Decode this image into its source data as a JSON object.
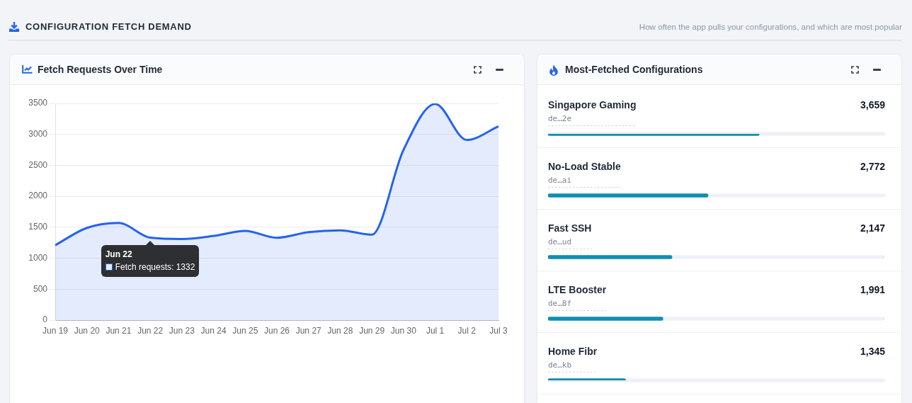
{
  "chart_data": [
    {
      "type": "other",
      "title": "CONFIGURATION FETCH DEMAND",
      "subtitle": "How often the app pulls your configurations, and which are most popular"
    },
    {
      "type": "area",
      "title": "Fetch Requests Over Time",
      "categories": [
        "Jun 19",
        "Jun 20",
        "Jun 21",
        "Jun 22",
        "Jun 23",
        "Jun 24",
        "Jun 25",
        "Jun 26",
        "Jun 27",
        "Jun 28",
        "Jun 29",
        "Jun 30",
        "Jul 1",
        "Jul 2",
        "Jul 3"
      ],
      "series": [
        {
          "color": "#2563eb",
          "values": [
            1210,
            1490,
            1570,
            1332,
            1310,
            1360,
            1440,
            1330,
            1420,
            1450,
            1380,
            2750,
            3490,
            2910,
            3130
          ]
        }
      ],
      "ylim": [
        0,
        3500
      ],
      "yticks": [
        0,
        500,
        1000,
        1500,
        2000,
        2500,
        3000,
        3500
      ],
      "grid": "y",
      "marker": "none",
      "annotations": [
        "Jun 22",
        {
          "text": "Fetch requests: 1332",
          "x": "Jun 22",
          "y": 1332
        }
      ]
    },
    {
      "type": "bar",
      "orientation": "horizontal",
      "title": "Most-Fetched Configurations",
      "categories": [
        "Singapore Gaming",
        "No-Load Stable",
        "Fast SSH",
        "LTE Booster",
        "Home Fibr"
      ],
      "values": [
        3659,
        2772,
        2147,
        1991,
        1345
      ],
      "color": "#0e8fb1",
      "xlim": [
        0,
        5840
      ],
      "tick_labels": "y",
      "value_labels": [
        "3,659",
        "2,772",
        "2,147",
        "1,991",
        "1,345"
      ],
      "annotations": [
        {
          "text": "de…2e",
          "y": "Singapore Gaming"
        },
        {
          "text": "de…ai",
          "y": "No-Load Stable"
        },
        {
          "text": "de…ud",
          "y": "Fast SSH"
        },
        {
          "text": "de…8f",
          "y": "LTE Booster"
        },
        {
          "text": "de…kb",
          "y": "Home Fibr"
        }
      ]
    }
  ]
}
